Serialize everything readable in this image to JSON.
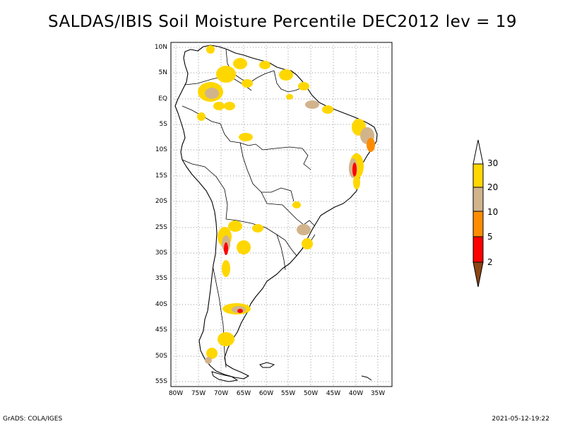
{
  "title": "SALDAS/IBIS Soil Moisture Percentile DEC2012 lev = 19",
  "map": {
    "lat_labels": [
      "10N",
      "5N",
      "EQ",
      "5S",
      "10S",
      "15S",
      "20S",
      "25S",
      "30S",
      "35S",
      "40S",
      "45S",
      "50S",
      "55S"
    ],
    "lon_labels": [
      "80W",
      "75W",
      "70W",
      "65W",
      "60W",
      "55W",
      "50W",
      "45W",
      "40W",
      "35W"
    ],
    "lon_range": [
      -81,
      -32
    ],
    "lat_range": [
      -56,
      11
    ],
    "grid": "dotted"
  },
  "colorbar": {
    "levels": [
      "2",
      "5",
      "10",
      "20",
      "30"
    ],
    "colors": {
      "below_2": "#8B4513",
      "2_5": "#FF0000",
      "5_10": "#FF8C00",
      "10_20": "#D2B48C",
      "20_30": "#FFD700",
      "above_30": "#FFFFFF"
    }
  },
  "footer": {
    "left": "GrADS: COLA/IGES",
    "right": "2021-05-12-19:22"
  }
}
